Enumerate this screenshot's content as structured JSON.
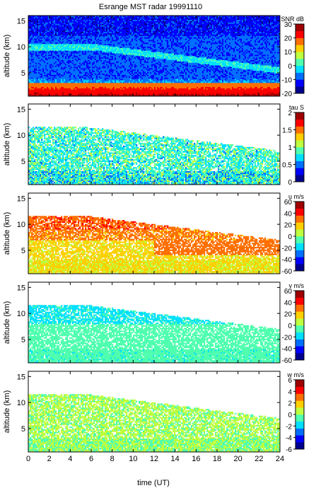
{
  "figure": {
    "title": "Esrange MST radar 19991110",
    "xlabel": "time (UT)"
  },
  "colormap": [
    "#00008f",
    "#0000ff",
    "#006fff",
    "#00dfff",
    "#4fffaf",
    "#bfff3f",
    "#ffcf00",
    "#ff6f00",
    "#ff0000",
    "#9f0000"
  ],
  "chart_data": [
    {
      "type": "heatmap",
      "name": "snr-panel",
      "ylabel": "altitude (km)",
      "colorbar_label": "SNR dB",
      "colorbar_ticks": [
        -20,
        -10,
        0,
        10,
        20,
        30
      ],
      "clim": [
        -20,
        30
      ],
      "xlim": [
        0,
        24
      ],
      "ylim": [
        0.5,
        16
      ],
      "xticks": [
        0,
        2,
        4,
        6,
        8,
        10,
        12,
        14,
        16,
        18,
        20,
        22,
        24
      ],
      "yticks": [
        5,
        10,
        15
      ],
      "field": "snr"
    },
    {
      "type": "heatmap",
      "name": "tau-panel",
      "ylabel": "altitude (km)",
      "colorbar_label": "tau S",
      "colorbar_ticks": [
        0,
        0.5,
        1,
        1.5,
        2
      ],
      "clim": [
        0,
        2
      ],
      "xlim": [
        0,
        24
      ],
      "ylim": [
        0.5,
        16
      ],
      "xticks": [
        0,
        2,
        4,
        6,
        8,
        10,
        12,
        14,
        16,
        18,
        20,
        22,
        24
      ],
      "yticks": [
        5,
        10,
        15
      ],
      "field": "tau"
    },
    {
      "type": "heatmap",
      "name": "u-panel",
      "ylabel": "altitude (km)",
      "colorbar_label": "u m/s",
      "colorbar_ticks": [
        -60,
        -40,
        -20,
        0,
        20,
        40,
        60
      ],
      "clim": [
        -60,
        60
      ],
      "xlim": [
        0,
        24
      ],
      "ylim": [
        0.5,
        16
      ],
      "xticks": [
        0,
        2,
        4,
        6,
        8,
        10,
        12,
        14,
        16,
        18,
        20,
        22,
        24
      ],
      "yticks": [
        5,
        10,
        15
      ],
      "field": "u"
    },
    {
      "type": "heatmap",
      "name": "v-panel",
      "ylabel": "altitude (km)",
      "colorbar_label": "v m/s",
      "colorbar_ticks": [
        -60,
        -40,
        -20,
        0,
        20,
        40,
        60
      ],
      "clim": [
        -60,
        60
      ],
      "xlim": [
        0,
        24
      ],
      "ylim": [
        0.5,
        16
      ],
      "xticks": [
        0,
        2,
        4,
        6,
        8,
        10,
        12,
        14,
        16,
        18,
        20,
        22,
        24
      ],
      "yticks": [
        5,
        10,
        15
      ],
      "field": "v"
    },
    {
      "type": "heatmap",
      "name": "w-panel",
      "ylabel": "altitude (km)",
      "colorbar_label": "w m/s",
      "colorbar_ticks": [
        -6,
        -4,
        -2,
        0,
        2,
        4,
        6
      ],
      "clim": [
        -6,
        6
      ],
      "xlim": [
        0,
        24
      ],
      "ylim": [
        0.5,
        16
      ],
      "xticks": [
        0,
        2,
        4,
        6,
        8,
        10,
        12,
        14,
        16,
        18,
        20,
        22,
        24
      ],
      "yticks": [
        5,
        10,
        15
      ],
      "field": "w"
    }
  ]
}
